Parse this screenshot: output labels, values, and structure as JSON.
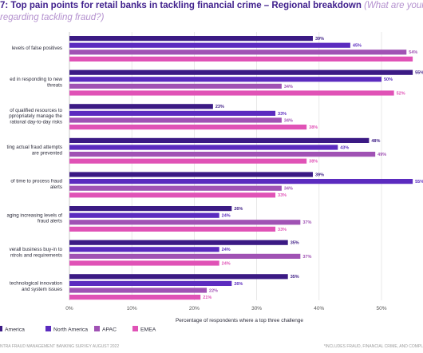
{
  "chart_data": {
    "type": "bar",
    "orientation": "horizontal",
    "title": "7: Top pain points for retail banks in tackling financial crime – Regional breakdown",
    "subtitle_line1": "(What are your top p",
    "subtitle_line2": "regarding tackling fraud?)",
    "xlabel": "Percentage of respondents where a top three challenge",
    "xlim": [
      0,
      55
    ],
    "x_ticks": [
      {
        "value": 0,
        "label": "0%"
      },
      {
        "value": 10,
        "label": "10%"
      },
      {
        "value": 20,
        "label": "20%"
      },
      {
        "value": 30,
        "label": "30%"
      },
      {
        "value": 40,
        "label": "40%"
      },
      {
        "value": 50,
        "label": "50%"
      }
    ],
    "grid": true,
    "categories": [
      [
        "levels of false positives"
      ],
      [
        "ed in responding to new",
        "threats"
      ],
      [
        "of qualified resources to",
        "ppropriately manage the",
        "rational day-to-day risks"
      ],
      [
        "ting actual fraud attempts",
        "are prevented"
      ],
      [
        "of time to process fraud",
        "alerts"
      ],
      [
        "aging increasing levels of",
        "fraud alerts"
      ],
      [
        "verall business buy-in to",
        "ntrols and requirements"
      ],
      [
        "technological innovation",
        "and system issues"
      ]
    ],
    "series": [
      {
        "name": "America",
        "color": "#3b1a84",
        "values": [
          39,
          55,
          23,
          48,
          39,
          26,
          35,
          35
        ],
        "labels": [
          "39%",
          "55%",
          "23%",
          "48%",
          "39%",
          "26%",
          "35%",
          "35%"
        ]
      },
      {
        "name": "North America",
        "color": "#5b2bbf",
        "values": [
          45,
          50,
          33,
          43,
          55,
          24,
          24,
          26
        ],
        "labels": [
          "45%",
          "50%",
          "33%",
          "43%",
          "55%",
          "24%",
          "24%",
          "26%"
        ]
      },
      {
        "name": "APAC",
        "color": "#a052b4",
        "values": [
          54,
          34,
          34,
          49,
          34,
          37,
          37,
          22
        ],
        "labels": [
          "54%",
          "34%",
          "34%",
          "49%",
          "34%",
          "37%",
          "37%",
          "22%"
        ]
      },
      {
        "name": "EMEA",
        "color": "#e052b6",
        "values": [
          55,
          52,
          38,
          38,
          33,
          33,
          24,
          21
        ],
        "labels": [
          "",
          "52%",
          "38%",
          "38%",
          "33%",
          "33%",
          "24%",
          "21%"
        ]
      }
    ],
    "legend_position": "bottom"
  },
  "footer": {
    "left": "NTRA FRAUD MANAGEMENT BANKING SURVEY AUGUST 2022",
    "right": "*INCLUDES FRAUD, FINANCIAL CRIME, AND COMPL"
  }
}
